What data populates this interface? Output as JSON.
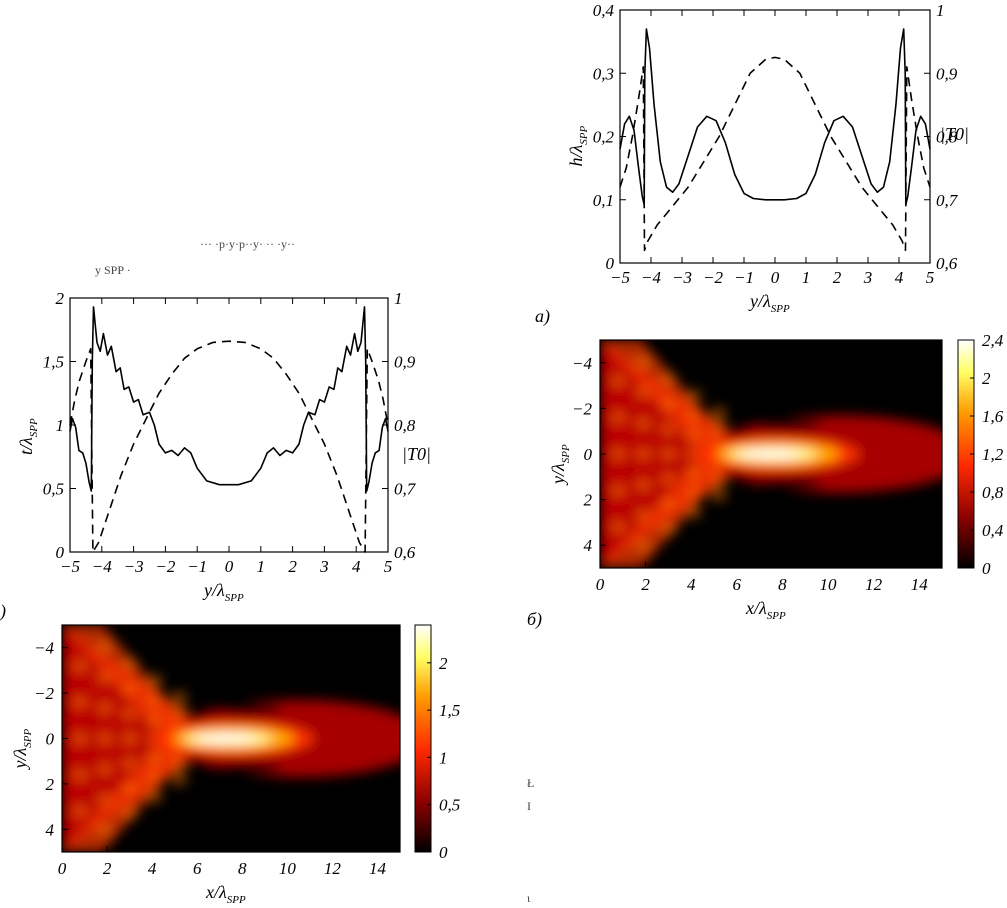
{
  "chart_data": [
    {
      "id": "a",
      "type": "line",
      "caption": "a)",
      "xlabel": "y/λ",
      "xlabel_sub": "SPP",
      "ylabel": "h/λ",
      "ylabel_sub": "SPP",
      "y2label": "|T0|",
      "xlim": [
        -5,
        5
      ],
      "ylim": [
        0,
        0.4
      ],
      "y2lim": [
        0.6,
        1.0
      ],
      "xticks": [
        "−5",
        "−4",
        "−3",
        "−2",
        "−1",
        "0",
        "1",
        "2",
        "3",
        "4",
        "5"
      ],
      "yticks": [
        "0",
        "0,1",
        "0,2",
        "0,3",
        "0,4"
      ],
      "y2ticks": [
        "0,6",
        "0,7",
        "0,8",
        "0,9",
        "1"
      ],
      "series": [
        {
          "name": "h",
          "axis": "left",
          "style": "solid",
          "points": [
            [
              -5,
              0.18
            ],
            [
              -4.85,
              0.22
            ],
            [
              -4.7,
              0.232
            ],
            [
              -4.55,
              0.21
            ],
            [
              -4.4,
              0.15
            ],
            [
              -4.28,
              0.105
            ],
            [
              -4.22,
              0.092
            ],
            [
              -4.2,
              0.3
            ],
            [
              -4.15,
              0.37
            ],
            [
              -4.05,
              0.34
            ],
            [
              -3.9,
              0.25
            ],
            [
              -3.7,
              0.16
            ],
            [
              -3.5,
              0.12
            ],
            [
              -3.3,
              0.112
            ],
            [
              -3.1,
              0.125
            ],
            [
              -2.8,
              0.17
            ],
            [
              -2.5,
              0.215
            ],
            [
              -2.2,
              0.232
            ],
            [
              -1.9,
              0.225
            ],
            [
              -1.6,
              0.19
            ],
            [
              -1.3,
              0.14
            ],
            [
              -1.0,
              0.11
            ],
            [
              -0.7,
              0.102
            ],
            [
              -0.3,
              0.1
            ],
            [
              0,
              0.1
            ],
            [
              0.3,
              0.1
            ],
            [
              0.7,
              0.102
            ],
            [
              1.0,
              0.11
            ],
            [
              1.3,
              0.14
            ],
            [
              1.6,
              0.19
            ],
            [
              1.9,
              0.225
            ],
            [
              2.2,
              0.232
            ],
            [
              2.5,
              0.215
            ],
            [
              2.8,
              0.17
            ],
            [
              3.1,
              0.125
            ],
            [
              3.3,
              0.112
            ],
            [
              3.5,
              0.12
            ],
            [
              3.7,
              0.16
            ],
            [
              3.9,
              0.25
            ],
            [
              4.05,
              0.34
            ],
            [
              4.15,
              0.37
            ],
            [
              4.2,
              0.3
            ],
            [
              4.22,
              0.092
            ],
            [
              4.28,
              0.105
            ],
            [
              4.4,
              0.15
            ],
            [
              4.55,
              0.21
            ],
            [
              4.7,
              0.232
            ],
            [
              4.85,
              0.22
            ],
            [
              5,
              0.18
            ]
          ]
        },
        {
          "name": "|T0|",
          "axis": "right",
          "style": "dashed",
          "points": [
            [
              -5,
              0.72
            ],
            [
              -4.8,
              0.75
            ],
            [
              -4.6,
              0.8
            ],
            [
              -4.4,
              0.86
            ],
            [
              -4.25,
              0.91
            ],
            [
              -4.21,
              0.62
            ],
            [
              -4.1,
              0.635
            ],
            [
              -3.8,
              0.66
            ],
            [
              -3.3,
              0.69
            ],
            [
              -2.8,
              0.72
            ],
            [
              -2.3,
              0.76
            ],
            [
              -1.8,
              0.8
            ],
            [
              -1.3,
              0.85
            ],
            [
              -0.8,
              0.9
            ],
            [
              -0.3,
              0.922
            ],
            [
              0,
              0.925
            ],
            [
              0.3,
              0.922
            ],
            [
              0.8,
              0.9
            ],
            [
              1.3,
              0.85
            ],
            [
              1.8,
              0.8
            ],
            [
              2.3,
              0.76
            ],
            [
              2.8,
              0.72
            ],
            [
              3.3,
              0.69
            ],
            [
              3.8,
              0.66
            ],
            [
              4.1,
              0.635
            ],
            [
              4.21,
              0.62
            ],
            [
              4.25,
              0.91
            ],
            [
              4.4,
              0.86
            ],
            [
              4.6,
              0.8
            ],
            [
              4.8,
              0.75
            ],
            [
              5,
              0.72
            ]
          ]
        }
      ]
    },
    {
      "id": "b",
      "type": "heatmap",
      "caption": "б)",
      "xlabel": "x/λ",
      "xlabel_sub": "SPP",
      "ylabel": "y/λ",
      "ylabel_sub": "SPP",
      "xlim": [
        0,
        15
      ],
      "ylim": [
        -5,
        5
      ],
      "xticks": [
        "0",
        "2",
        "4",
        "6",
        "8",
        "10",
        "12",
        "14"
      ],
      "yticks": [
        "−4",
        "−2",
        "0",
        "2",
        "4"
      ],
      "clim": [
        0,
        2.4
      ],
      "colorbar_ticks": [
        "0",
        "0,4",
        "0,8",
        "1,2",
        "1,6",
        "2",
        "2,4"
      ],
      "hotspot": {
        "x": 7.8,
        "y": 0,
        "peak": 2.4
      },
      "colormap": [
        "#000000",
        "#8b0000",
        "#ff2a00",
        "#ff9900",
        "#ffff66",
        "#ffffff"
      ]
    },
    {
      "id": "c",
      "type": "line",
      "caption": ")",
      "xlabel": "y/λ",
      "xlabel_sub": "SPP",
      "ylabel": "t/λ",
      "ylabel_sub": "SPP",
      "y2label": "|T0|",
      "xlim": [
        -5,
        5
      ],
      "ylim": [
        0,
        2
      ],
      "y2lim": [
        0.6,
        1.0
      ],
      "xticks": [
        "−5",
        "−4",
        "−3",
        "−2",
        "−1",
        "0",
        "1",
        "2",
        "3",
        "4",
        "5"
      ],
      "yticks": [
        "0",
        "0,5",
        "1",
        "1,5",
        "2"
      ],
      "y2ticks": [
        "0,6",
        "0,7",
        "0,8",
        "0,9",
        "1"
      ],
      "series": [
        {
          "name": "t",
          "axis": "left",
          "style": "solid",
          "points": [
            [
              -5,
              0.95
            ],
            [
              -4.92,
              1.05
            ],
            [
              -4.82,
              0.98
            ],
            [
              -4.72,
              0.8
            ],
            [
              -4.6,
              0.78
            ],
            [
              -4.5,
              0.7
            ],
            [
              -4.4,
              0.55
            ],
            [
              -4.33,
              0.48
            ],
            [
              -4.3,
              1.5
            ],
            [
              -4.26,
              1.93
            ],
            [
              -4.15,
              1.65
            ],
            [
              -4.05,
              1.58
            ],
            [
              -3.95,
              1.72
            ],
            [
              -3.82,
              1.55
            ],
            [
              -3.7,
              1.62
            ],
            [
              -3.55,
              1.42
            ],
            [
              -3.42,
              1.45
            ],
            [
              -3.3,
              1.28
            ],
            [
              -3.15,
              1.3
            ],
            [
              -3.0,
              1.18
            ],
            [
              -2.85,
              1.2
            ],
            [
              -2.7,
              1.08
            ],
            [
              -2.5,
              1.1
            ],
            [
              -2.35,
              1.0
            ],
            [
              -2.2,
              0.85
            ],
            [
              -2.0,
              0.78
            ],
            [
              -1.8,
              0.8
            ],
            [
              -1.6,
              0.76
            ],
            [
              -1.4,
              0.82
            ],
            [
              -1.2,
              0.78
            ],
            [
              -1.0,
              0.66
            ],
            [
              -0.7,
              0.56
            ],
            [
              -0.3,
              0.53
            ],
            [
              0,
              0.53
            ],
            [
              0.3,
              0.53
            ],
            [
              0.7,
              0.56
            ],
            [
              1.0,
              0.66
            ],
            [
              1.2,
              0.78
            ],
            [
              1.4,
              0.82
            ],
            [
              1.6,
              0.76
            ],
            [
              1.8,
              0.8
            ],
            [
              2.0,
              0.78
            ],
            [
              2.2,
              0.85
            ],
            [
              2.35,
              1.0
            ],
            [
              2.5,
              1.1
            ],
            [
              2.7,
              1.08
            ],
            [
              2.85,
              1.2
            ],
            [
              3.0,
              1.18
            ],
            [
              3.15,
              1.3
            ],
            [
              3.3,
              1.28
            ],
            [
              3.42,
              1.45
            ],
            [
              3.55,
              1.42
            ],
            [
              3.7,
              1.62
            ],
            [
              3.82,
              1.55
            ],
            [
              3.95,
              1.72
            ],
            [
              4.05,
              1.58
            ],
            [
              4.15,
              1.65
            ],
            [
              4.26,
              1.93
            ],
            [
              4.3,
              1.5
            ],
            [
              4.33,
              0.48
            ],
            [
              4.4,
              0.55
            ],
            [
              4.5,
              0.7
            ],
            [
              4.6,
              0.78
            ],
            [
              4.72,
              0.8
            ],
            [
              4.82,
              0.98
            ],
            [
              4.92,
              1.05
            ],
            [
              5,
              0.95
            ]
          ]
        },
        {
          "name": "|T0|",
          "axis": "right",
          "style": "dashed",
          "points": [
            [
              -5,
              0.8
            ],
            [
              -4.85,
              0.84
            ],
            [
              -4.7,
              0.87
            ],
            [
              -4.5,
              0.9
            ],
            [
              -4.35,
              0.92
            ],
            [
              -4.28,
              0.6
            ],
            [
              -4.1,
              0.615
            ],
            [
              -3.8,
              0.66
            ],
            [
              -3.4,
              0.72
            ],
            [
              -3.0,
              0.77
            ],
            [
              -2.6,
              0.81
            ],
            [
              -2.2,
              0.85
            ],
            [
              -1.8,
              0.88
            ],
            [
              -1.4,
              0.905
            ],
            [
              -1.0,
              0.92
            ],
            [
              -0.5,
              0.93
            ],
            [
              0,
              0.932
            ],
            [
              0.5,
              0.93
            ],
            [
              1.0,
              0.92
            ],
            [
              1.4,
              0.905
            ],
            [
              1.8,
              0.88
            ],
            [
              2.2,
              0.85
            ],
            [
              2.6,
              0.81
            ],
            [
              3.0,
              0.77
            ],
            [
              3.4,
              0.72
            ],
            [
              3.8,
              0.66
            ],
            [
              4.1,
              0.615
            ],
            [
              4.28,
              0.6
            ],
            [
              4.35,
              0.92
            ],
            [
              4.5,
              0.9
            ],
            [
              4.7,
              0.87
            ],
            [
              4.85,
              0.84
            ],
            [
              5,
              0.8
            ]
          ]
        }
      ]
    },
    {
      "id": "d",
      "type": "heatmap",
      "caption": "",
      "xlabel": "x/λ",
      "xlabel_sub": "SPP",
      "ylabel": "y/λ",
      "ylabel_sub": "SPP",
      "xlim": [
        0,
        15
      ],
      "ylim": [
        -5,
        5
      ],
      "xticks": [
        "0",
        "2",
        "4",
        "6",
        "8",
        "10",
        "12",
        "14"
      ],
      "yticks": [
        "−4",
        "−2",
        "0",
        "2",
        "4"
      ],
      "clim": [
        0,
        2.4
      ],
      "colorbar_ticks": [
        "0",
        "0,5",
        "1",
        "1,5",
        "2"
      ],
      "hotspot": {
        "x": 7.6,
        "y": 0,
        "peak": 2.4
      },
      "colormap": [
        "#000000",
        "#8b0000",
        "#ff2a00",
        "#ff9900",
        "#ffff66",
        "#ffffff"
      ]
    }
  ],
  "fragments": {
    "f1": "··· ·p·y·p··y· ·· ·y··",
    "f2": "y   SPP ·",
    "f3": "Ł",
    "f4": "I",
    "f5": "ι"
  }
}
